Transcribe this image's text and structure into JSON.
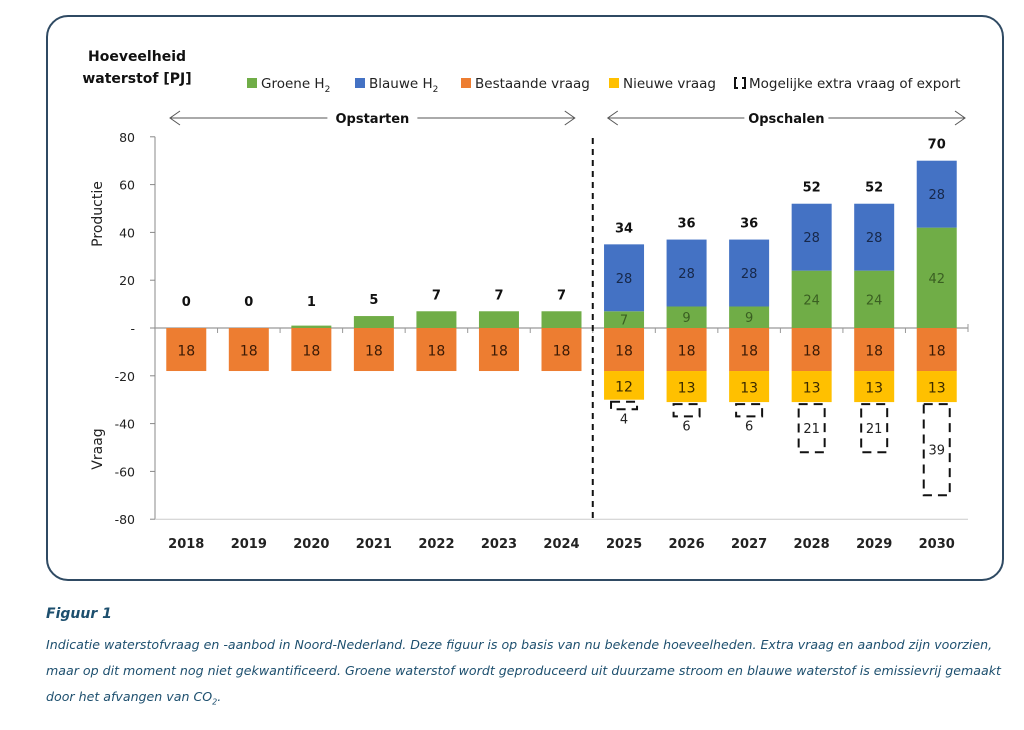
{
  "chart_data": {
    "type": "bar",
    "stacked": true,
    "title": "Hoeveelheid waterstof [PJ]",
    "ylabel_positive": "Productie",
    "ylabel_negative": "Vraag",
    "ylim": [
      -80,
      80
    ],
    "yticks": [
      80,
      60,
      40,
      20,
      0,
      -20,
      -40,
      -60,
      -80
    ],
    "ytick_labels": [
      "80",
      "60",
      "40",
      "20",
      "-",
      "-20",
      "-40",
      "-60",
      "-80"
    ],
    "grid": false,
    "legend_position": "top",
    "categories": [
      "2018",
      "2019",
      "2020",
      "2021",
      "2022",
      "2023",
      "2024",
      "2025",
      "2026",
      "2027",
      "2028",
      "2029",
      "2030"
    ],
    "series": [
      {
        "name": "Groene H2",
        "color": "#70ad47",
        "values": [
          0,
          0,
          1,
          5,
          7,
          7,
          7,
          7,
          9,
          9,
          24,
          24,
          42
        ]
      },
      {
        "name": "Blauwe H2",
        "color": "#4472c4",
        "values": [
          0,
          0,
          0,
          0,
          0,
          0,
          0,
          28,
          28,
          28,
          28,
          28,
          28
        ]
      },
      {
        "name": "Bestaande vraag",
        "color": "#ed7d31",
        "values": [
          -18,
          -18,
          -18,
          -18,
          -18,
          -18,
          -18,
          -18,
          -18,
          -18,
          -18,
          -18,
          -18
        ]
      },
      {
        "name": "Nieuwe vraag",
        "color": "#ffc000",
        "values": [
          0,
          0,
          0,
          0,
          0,
          0,
          0,
          -12,
          -13,
          -13,
          -13,
          -13,
          -13
        ]
      },
      {
        "name": "Mogelijke extra vraag of export",
        "style": "dashed-outline",
        "values": [
          0,
          0,
          0,
          0,
          0,
          0,
          0,
          -4,
          -6,
          -6,
          -21,
          -21,
          -39
        ]
      }
    ],
    "totals": [
      0,
      0,
      1,
      5,
      7,
      7,
      7,
      34,
      36,
      36,
      52,
      52,
      70
    ],
    "phases": [
      {
        "label": "Opstarten",
        "from": "2018",
        "to": "2024"
      },
      {
        "label": "Opschalen",
        "from": "2025",
        "to": "2030"
      }
    ]
  },
  "legend": {
    "groene": "Groene H",
    "blauwe": "Blauwe H",
    "sub": "2",
    "bestaande": "Bestaande vraag",
    "nieuwe": "Nieuwe vraag",
    "extra": "Mogelijke extra vraag of export"
  },
  "title_line1": "Hoeveelheid",
  "title_line2": "waterstof [PJ]",
  "caption": {
    "title": "Figuur 1",
    "text": "Indicatie waterstofvraag en -aanbod in Noord-Nederland. Deze figuur is op basis van nu bekende hoeveelheden. Extra vraag en aanbod zijn voorzien, maar op dit moment nog niet gekwantificeerd. Groene waterstof wordt geproduceerd uit duurzame stroom en blauwe waterstof is emissievrij gemaakt door het afvangen van CO",
    "sub": "2",
    "end": "."
  }
}
